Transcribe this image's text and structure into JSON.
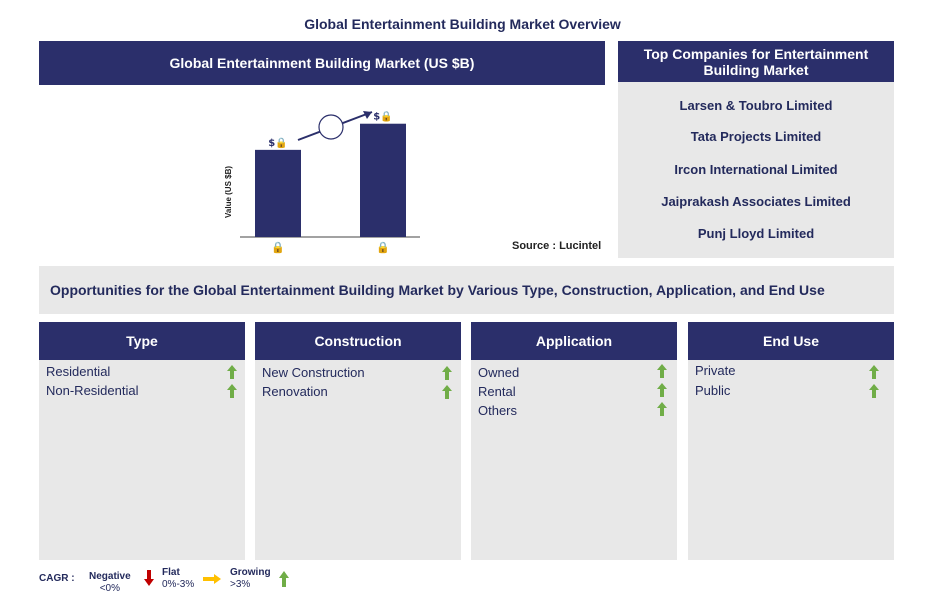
{
  "page_title": "Global Entertainment Building Market Overview",
  "market_panel": {
    "header": "Global Entertainment Building Market (US $B)",
    "source": "Source : Lucintel"
  },
  "chart_data": {
    "type": "bar",
    "title": "Global Entertainment Building Market (US $B)",
    "ylabel": "Value (US $B)",
    "categories": [
      "🔒",
      "🔒"
    ],
    "values": [
      1.0,
      1.3
    ],
    "value_labels": [
      "$🔒",
      "$🔒"
    ],
    "ylim": [
      0,
      1.4
    ],
    "grid": false,
    "bar_color": "#2b2f6b",
    "annotation": "growth arrow with circle (CAGR hidden)"
  },
  "companies_panel": {
    "header": "Top Companies for Entertainment Building Market",
    "items": [
      "Larsen & Toubro Limited",
      "Tata Projects Limited",
      "Ircon International Limited",
      "Jaiprakash Associates Limited",
      "Punj Lloyd Limited"
    ]
  },
  "opportunities_banner": "Opportunities for the Global Entertainment Building Market by Various Type, Construction, Application, and End Use",
  "segments": [
    {
      "title": "Type",
      "items": [
        "Residential",
        "Non-Residential"
      ]
    },
    {
      "title": "Construction",
      "items": [
        "New Construction",
        "Renovation"
      ]
    },
    {
      "title": "Application",
      "items": [
        "Owned",
        "Rental",
        "Others"
      ]
    },
    {
      "title": "End Use",
      "items": [
        "Private",
        "Public"
      ]
    }
  ],
  "legend": {
    "label": "CAGR :",
    "negative": {
      "title": "Negative",
      "range": "<0%",
      "color": "#c00000"
    },
    "flat": {
      "title": "Flat",
      "range": "0%-3%",
      "color": "#ffc000"
    },
    "growing": {
      "title": "Growing",
      "range": ">3%",
      "color": "#70ad47"
    }
  }
}
